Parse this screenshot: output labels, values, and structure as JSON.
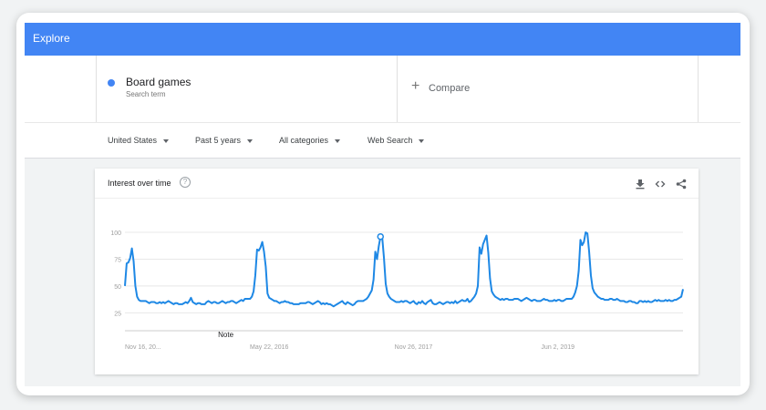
{
  "header": {
    "title": "Explore"
  },
  "search_term": {
    "name": "Board games",
    "subtitle": "Search term",
    "color": "#4285f4"
  },
  "compare": {
    "plus": "+",
    "label": "Compare"
  },
  "filters": [
    {
      "label": "United States"
    },
    {
      "label": "Past 5 years"
    },
    {
      "label": "All categories"
    },
    {
      "label": "Web Search"
    }
  ],
  "card": {
    "title": "Interest over time",
    "help": "?",
    "icons": [
      "download-icon",
      "embed-icon",
      "share-icon"
    ]
  },
  "chart_data": {
    "type": "line",
    "title": "Interest over time",
    "series": [
      {
        "name": "Board games",
        "color": "#1e88e5",
        "values": [
          50,
          71,
          72,
          76,
          85,
          73,
          50,
          40,
          37,
          36,
          36,
          36,
          36,
          35,
          34,
          35,
          35,
          35,
          34,
          34,
          35,
          34,
          35,
          34,
          35,
          36,
          35,
          34,
          33,
          34,
          34,
          33,
          33,
          33,
          34,
          35,
          34,
          36,
          39,
          35,
          34,
          33,
          34,
          34,
          33,
          33,
          33,
          35,
          36,
          35,
          34,
          35,
          35,
          34,
          34,
          35,
          36,
          35,
          34,
          35,
          35,
          36,
          36,
          35,
          34,
          35,
          36,
          37,
          36,
          38,
          38,
          38,
          38,
          40,
          45,
          60,
          84,
          83,
          86,
          91,
          82,
          68,
          43,
          39,
          38,
          37,
          36,
          36,
          35,
          34,
          35,
          35,
          36,
          35,
          35,
          34,
          34,
          33,
          33,
          33,
          33,
          34,
          34,
          34,
          34,
          35,
          35,
          34,
          33,
          34,
          35,
          36,
          35,
          33,
          34,
          33,
          34,
          33,
          33,
          32,
          31,
          32,
          33,
          34,
          35,
          36,
          34,
          33,
          35,
          34,
          33,
          32,
          33,
          35,
          36,
          36,
          36,
          36,
          37,
          38,
          40,
          43,
          46,
          56,
          82,
          75,
          87,
          96,
          95,
          76,
          52,
          43,
          40,
          38,
          37,
          36,
          35,
          35,
          35,
          36,
          35,
          36,
          36,
          35,
          34,
          35,
          36,
          34,
          33,
          35,
          34,
          36,
          34,
          33,
          35,
          36,
          37,
          34,
          33,
          33,
          34,
          35,
          34,
          33,
          34,
          35,
          35,
          34,
          35,
          34,
          36,
          34,
          35,
          36,
          37,
          36,
          36,
          38,
          35,
          36,
          38,
          40,
          43,
          50,
          86,
          80,
          89,
          93,
          97,
          81,
          57,
          45,
          42,
          40,
          39,
          38,
          37,
          38,
          37,
          38,
          38,
          37,
          37,
          37,
          38,
          38,
          38,
          37,
          36,
          37,
          38,
          39,
          38,
          37,
          36,
          37,
          37,
          36,
          36,
          36,
          37,
          38,
          37,
          37,
          36,
          36,
          36,
          37,
          36,
          37,
          37,
          36,
          36,
          37,
          38,
          38,
          38,
          38,
          40,
          44,
          50,
          64,
          93,
          88,
          91,
          100,
          99,
          82,
          60,
          48,
          44,
          42,
          40,
          39,
          38,
          38,
          37,
          37,
          37,
          38,
          38,
          37,
          37,
          38,
          37,
          36,
          36,
          36,
          35,
          35,
          36,
          36,
          35,
          35,
          34,
          34,
          36,
          36,
          35,
          36,
          35,
          36,
          35,
          35,
          36,
          37,
          36,
          37,
          36,
          36,
          36,
          37,
          36,
          37,
          36,
          36,
          37,
          37,
          38,
          39,
          40,
          47
        ],
        "marker_index": 147
      }
    ],
    "x_ticks": [
      {
        "label": "Nov 16, 20...",
        "index": 0
      },
      {
        "label": "May 22, 2016",
        "index": 83
      },
      {
        "label": "Nov 26, 2017",
        "index": 166
      },
      {
        "label": "Jun 2, 2019",
        "index": 249
      }
    ],
    "y_ticks": [
      25,
      50,
      75,
      100
    ],
    "ylim": [
      0,
      100
    ],
    "annotation": {
      "label": "Note",
      "index": 58
    }
  }
}
